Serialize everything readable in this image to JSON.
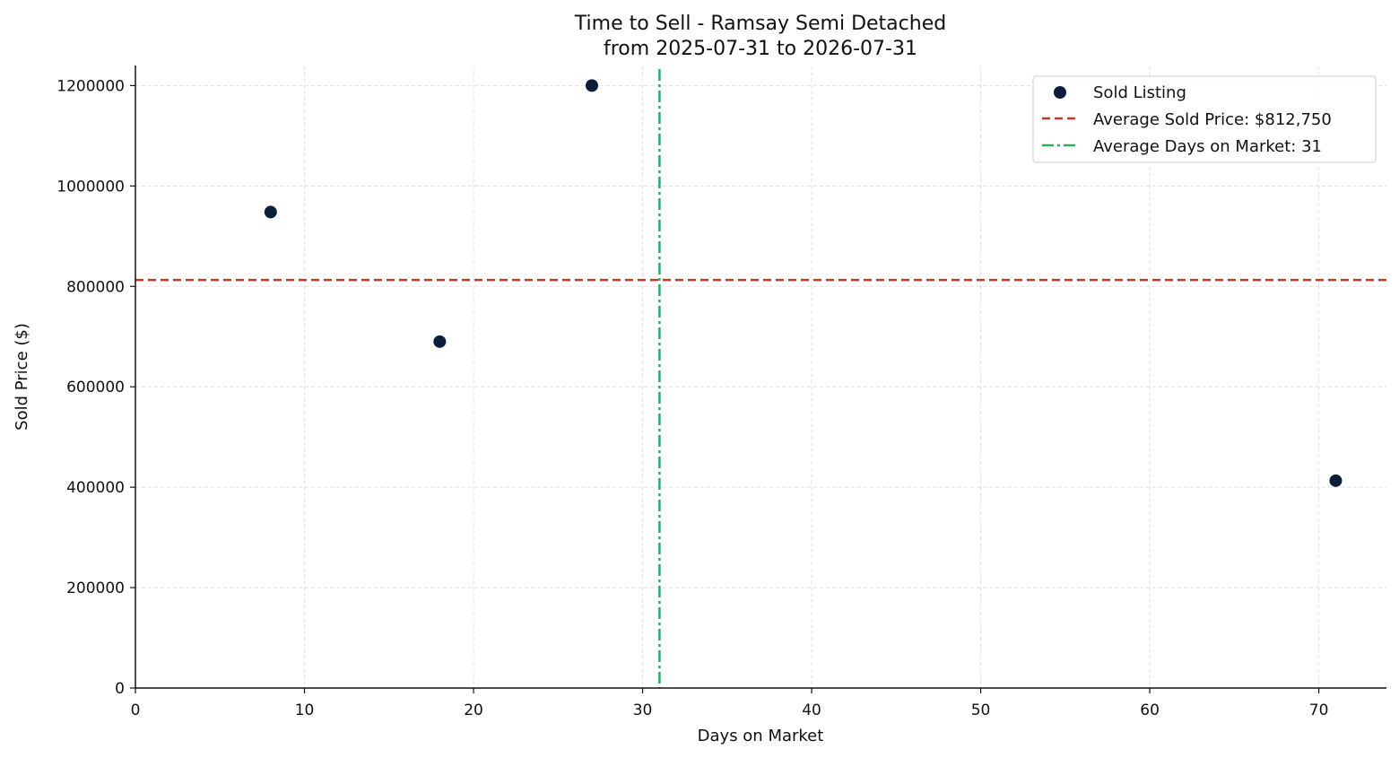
{
  "chart_data": {
    "type": "scatter",
    "title": [
      "Time to Sell - Ramsay Semi Detached",
      "from 2025-07-31 to 2026-07-31"
    ],
    "xlabel": "Days on Market",
    "ylabel": "Sold Price ($)",
    "xlim": [
      0,
      74
    ],
    "ylim": [
      0,
      1240000
    ],
    "xticks": [
      0,
      10,
      20,
      30,
      40,
      50,
      60,
      70
    ],
    "yticks": [
      0,
      200000,
      400000,
      600000,
      800000,
      1000000,
      1200000
    ],
    "grid": true,
    "legend_position": "top-right",
    "series": [
      {
        "name": "Sold Listing",
        "color": "#0b1f3a",
        "points": [
          {
            "x": 8,
            "y": 948000
          },
          {
            "x": 18,
            "y": 690000
          },
          {
            "x": 27,
            "y": 1200000
          },
          {
            "x": 71,
            "y": 413000
          }
        ]
      }
    ],
    "reference_lines": [
      {
        "orientation": "horizontal",
        "value": 812750,
        "label": "Average Sold Price: $812,750",
        "color": "#c0392b",
        "style": "dashed"
      },
      {
        "orientation": "vertical",
        "value": 31,
        "label": "Average Days on Market: 31",
        "color": "#27ae60",
        "style": "dashdot"
      }
    ]
  }
}
